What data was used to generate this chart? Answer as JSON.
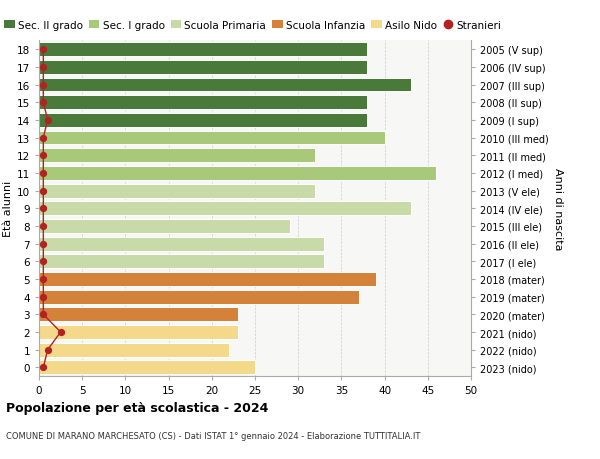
{
  "ages": [
    0,
    1,
    2,
    3,
    4,
    5,
    6,
    7,
    8,
    9,
    10,
    11,
    12,
    13,
    14,
    15,
    16,
    17,
    18
  ],
  "years": [
    "2023 (nido)",
    "2022 (nido)",
    "2021 (nido)",
    "2020 (mater)",
    "2019 (mater)",
    "2018 (mater)",
    "2017 (I ele)",
    "2016 (II ele)",
    "2015 (III ele)",
    "2014 (IV ele)",
    "2013 (V ele)",
    "2012 (I med)",
    "2011 (II med)",
    "2010 (III med)",
    "2009 (I sup)",
    "2008 (II sup)",
    "2007 (III sup)",
    "2006 (IV sup)",
    "2005 (V sup)"
  ],
  "values": [
    25,
    22,
    23,
    23,
    37,
    39,
    33,
    33,
    29,
    43,
    32,
    46,
    32,
    40,
    38,
    38,
    43,
    38,
    38
  ],
  "stranieri": [
    0.5,
    1.0,
    2.5,
    0.5,
    0.5,
    0.5,
    0.5,
    0.5,
    0.5,
    0.5,
    0.5,
    0.5,
    0.5,
    0.5,
    1.0,
    0.5,
    0.5,
    0.5,
    0.5
  ],
  "bar_colors": [
    "#f5d98b",
    "#f5d98b",
    "#f5d98b",
    "#d4813a",
    "#d4813a",
    "#d4813a",
    "#c8daa8",
    "#c8daa8",
    "#c8daa8",
    "#c8daa8",
    "#c8daa8",
    "#a8c87a",
    "#a8c87a",
    "#a8c87a",
    "#4a7a3a",
    "#4a7a3a",
    "#4a7a3a",
    "#4a7a3a",
    "#4a7a3a"
  ],
  "legend_labels": [
    "Sec. II grado",
    "Sec. I grado",
    "Scuola Primaria",
    "Scuola Infanzia",
    "Asilo Nido",
    "Stranieri"
  ],
  "legend_colors": [
    "#4a7a3a",
    "#a8c87a",
    "#c8daa8",
    "#d4813a",
    "#f5d98b",
    "#b22222"
  ],
  "stranieri_color": "#b22222",
  "title": "Popolazione per età scolastica - 2024",
  "subtitle": "COMUNE DI MARANO MARCHESATO (CS) - Dati ISTAT 1° gennaio 2024 - Elaborazione TUTTITALIA.IT",
  "ylabel_left": "Età alunni",
  "ylabel_right": "Anni di nascita",
  "xlim": [
    0,
    50
  ],
  "xticks": [
    0,
    5,
    10,
    15,
    20,
    25,
    30,
    35,
    40,
    45,
    50
  ],
  "background_color": "#ffffff",
  "plot_bg_color": "#f7f7f5",
  "grid_color": "#cccccc"
}
